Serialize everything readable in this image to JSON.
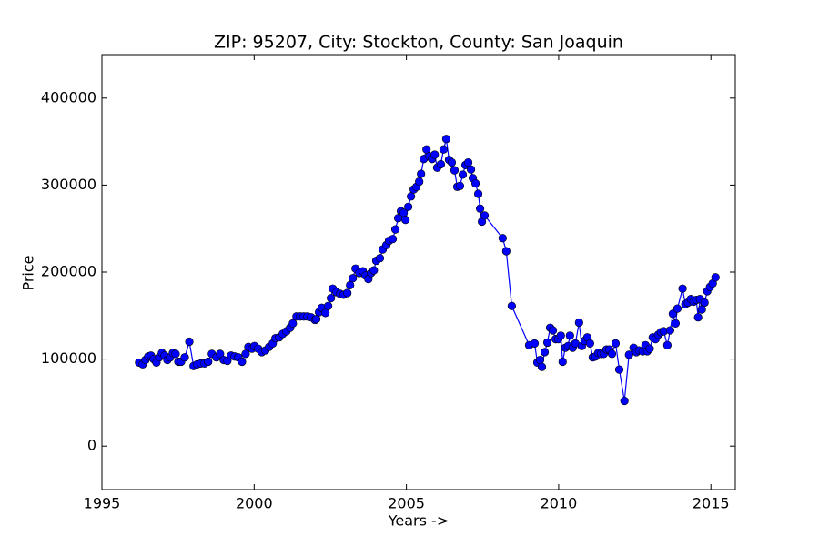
{
  "chart_data": {
    "type": "line",
    "title": "ZIP: 95207, City: Stockton, County: San Joaquin",
    "x_label": "Years ->",
    "y_label": "Price",
    "xlim": [
      1995,
      2015.8
    ],
    "ylim": [
      -50000,
      450000
    ],
    "xticks": [
      1995,
      2000,
      2005,
      2010,
      2015
    ],
    "yticks": [
      0,
      100000,
      200000,
      300000,
      400000
    ],
    "grid": false,
    "markers": true,
    "x": [
      1996.22,
      1996.34,
      1996.43,
      1996.52,
      1996.61,
      1996.7,
      1996.79,
      1996.88,
      1996.97,
      1997.06,
      1997.15,
      1997.24,
      1997.33,
      1997.42,
      1997.51,
      1997.6,
      1997.72,
      1997.87,
      1998.01,
      1998.13,
      1998.25,
      1998.37,
      1998.49,
      1998.61,
      1998.76,
      1998.88,
      1999.0,
      1999.12,
      1999.24,
      1999.36,
      1999.48,
      1999.6,
      1999.72,
      1999.81,
      1999.93,
      2000.01,
      2000.13,
      2000.25,
      2000.37,
      2000.49,
      2000.61,
      2000.7,
      2000.82,
      2000.94,
      2001.06,
      2001.18,
      2001.27,
      2001.39,
      2001.51,
      2001.63,
      2001.75,
      2001.87,
      2002.0,
      2002.04,
      2002.13,
      2002.22,
      2002.34,
      2002.43,
      2002.52,
      2002.58,
      2002.7,
      2002.82,
      2002.94,
      2003.06,
      2003.15,
      2003.24,
      2003.33,
      2003.45,
      2003.57,
      2003.66,
      2003.75,
      2003.84,
      2003.93,
      2004.01,
      2004.13,
      2004.22,
      2004.34,
      2004.43,
      2004.55,
      2004.64,
      2004.73,
      2004.82,
      2004.91,
      2004.97,
      2005.06,
      2005.15,
      2005.24,
      2005.33,
      2005.42,
      2005.48,
      2005.57,
      2005.66,
      2005.75,
      2005.84,
      2005.93,
      2006.01,
      2006.13,
      2006.22,
      2006.31,
      2006.4,
      2006.49,
      2006.58,
      2006.67,
      2006.76,
      2006.85,
      2006.94,
      2007.03,
      2007.12,
      2007.18,
      2007.27,
      2007.36,
      2007.42,
      2007.48,
      2007.57,
      2008.16,
      2008.28,
      2008.46,
      2009.03,
      2009.21,
      2009.3,
      2009.39,
      2009.45,
      2009.54,
      2009.63,
      2009.72,
      2009.81,
      2009.9,
      2009.99,
      2010.07,
      2010.13,
      2010.22,
      2010.31,
      2010.37,
      2010.46,
      2010.55,
      2010.67,
      2010.76,
      2010.85,
      2010.94,
      2011.03,
      2011.12,
      2011.21,
      2011.3,
      2011.39,
      2011.48,
      2011.57,
      2011.66,
      2011.75,
      2011.87,
      2011.99,
      2012.16,
      2012.31,
      2012.46,
      2012.55,
      2012.64,
      2012.76,
      2012.85,
      2012.91,
      2012.99,
      2013.09,
      2013.18,
      2013.27,
      2013.36,
      2013.45,
      2013.57,
      2013.66,
      2013.75,
      2013.84,
      2013.9,
      2014.07,
      2014.16,
      2014.25,
      2014.34,
      2014.43,
      2014.52,
      2014.58,
      2014.64,
      2014.7,
      2014.79,
      2014.88,
      2014.97,
      2015.06,
      2015.15
    ],
    "series": [
      {
        "color": "#0000ff",
        "values": [
          96000,
          94000,
          99000,
          103000,
          104000,
          100000,
          96000,
          102000,
          107000,
          104000,
          99000,
          102000,
          107000,
          106000,
          97000,
          97000,
          102000,
          120000,
          92000,
          94000,
          95000,
          95000,
          97000,
          106000,
          102000,
          106000,
          99000,
          98000,
          104000,
          103000,
          102000,
          97000,
          106000,
          114000,
          112000,
          115000,
          112000,
          108000,
          110000,
          114000,
          118000,
          124000,
          125000,
          129000,
          132000,
          136000,
          141000,
          149000,
          149000,
          149000,
          149000,
          148000,
          145000,
          146000,
          154000,
          159000,
          153000,
          161000,
          170000,
          181000,
          177000,
          175000,
          174000,
          176000,
          185000,
          193000,
          204000,
          199000,
          201000,
          196000,
          192000,
          199000,
          202000,
          213000,
          216000,
          226000,
          231000,
          236000,
          238000,
          249000,
          262000,
          270000,
          268000,
          260000,
          275000,
          287000,
          295000,
          298000,
          304000,
          313000,
          330000,
          341000,
          333000,
          330000,
          335000,
          320000,
          324000,
          341000,
          353000,
          329000,
          326000,
          317000,
          298000,
          299000,
          312000,
          323000,
          326000,
          318000,
          308000,
          302000,
          290000,
          273000,
          258000,
          265000,
          239000,
          224000,
          161000,
          116000,
          118000,
          96000,
          99000,
          91000,
          108000,
          119000,
          136000,
          133000,
          123000,
          123000,
          127000,
          97000,
          113000,
          115000,
          127000,
          113000,
          118000,
          142000,
          115000,
          121000,
          125000,
          118000,
          102000,
          103000,
          107000,
          106000,
          106000,
          111000,
          111000,
          106000,
          118000,
          88000,
          52000,
          105000,
          113000,
          108000,
          110000,
          109000,
          116000,
          109000,
          112000,
          125000,
          123000,
          128000,
          131000,
          132000,
          116000,
          133000,
          152000,
          141000,
          158000,
          181000,
          163000,
          165000,
          169000,
          166000,
          168000,
          148000,
          169000,
          157000,
          165000,
          178000,
          183000,
          187000,
          194000
        ]
      }
    ]
  }
}
